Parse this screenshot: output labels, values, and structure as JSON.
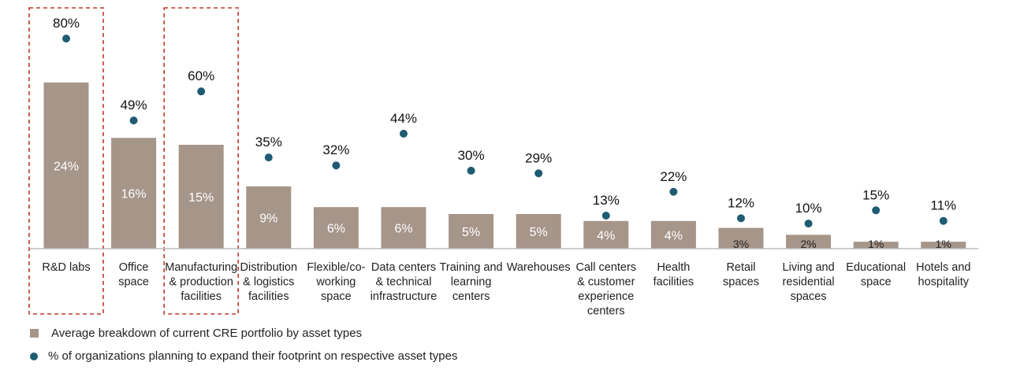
{
  "chart_data": {
    "type": "bar",
    "categories": [
      [
        "R&D labs"
      ],
      [
        "Office",
        "space"
      ],
      [
        "Manufacturing",
        "& production",
        "facilities"
      ],
      [
        "Distribution",
        "& logistics",
        "facilities"
      ],
      [
        "Flexible/co-",
        "working",
        "space"
      ],
      [
        "Data centers",
        "& technical",
        "infrastructure"
      ],
      [
        "Training and",
        "learning",
        "centers"
      ],
      [
        "Warehouses"
      ],
      [
        "Call centers",
        "& customer",
        "experience",
        "centers"
      ],
      [
        "Health",
        "facilities"
      ],
      [
        "Retail",
        "spaces"
      ],
      [
        "Living and",
        "residential",
        "spaces"
      ],
      [
        "Educational",
        "space"
      ],
      [
        "Hotels and",
        "hospitality"
      ]
    ],
    "series": [
      {
        "name": "Average breakdown of current CRE portfolio by asset types",
        "kind": "bar",
        "color": "#a69589",
        "values": [
          24,
          16,
          15,
          9,
          6,
          6,
          5,
          5,
          4,
          4,
          3,
          2,
          1,
          1
        ],
        "labels": [
          "24%",
          "16%",
          "15%",
          "9%",
          "6%",
          "6%",
          "5%",
          "5%",
          "4%",
          "4%",
          "3%",
          "2%",
          "1%",
          "1%"
        ]
      },
      {
        "name": "% of organizations planning to expand their footprint on respective asset types",
        "kind": "dot",
        "color": "#1f5c73",
        "values": [
          80,
          49,
          60,
          35,
          32,
          44,
          30,
          29,
          13,
          22,
          12,
          10,
          15,
          11
        ],
        "labels": [
          "80%",
          "49%",
          "60%",
          "35%",
          "32%",
          "44%",
          "30%",
          "29%",
          "13%",
          "22%",
          "12%",
          "10%",
          "15%",
          "11%"
        ]
      }
    ],
    "highlighted": [
      "R&D labs",
      "Manufacturing & production facilities"
    ],
    "highlight_color": "#c0392b",
    "legend_position": "bottom-left",
    "grid": false
  }
}
